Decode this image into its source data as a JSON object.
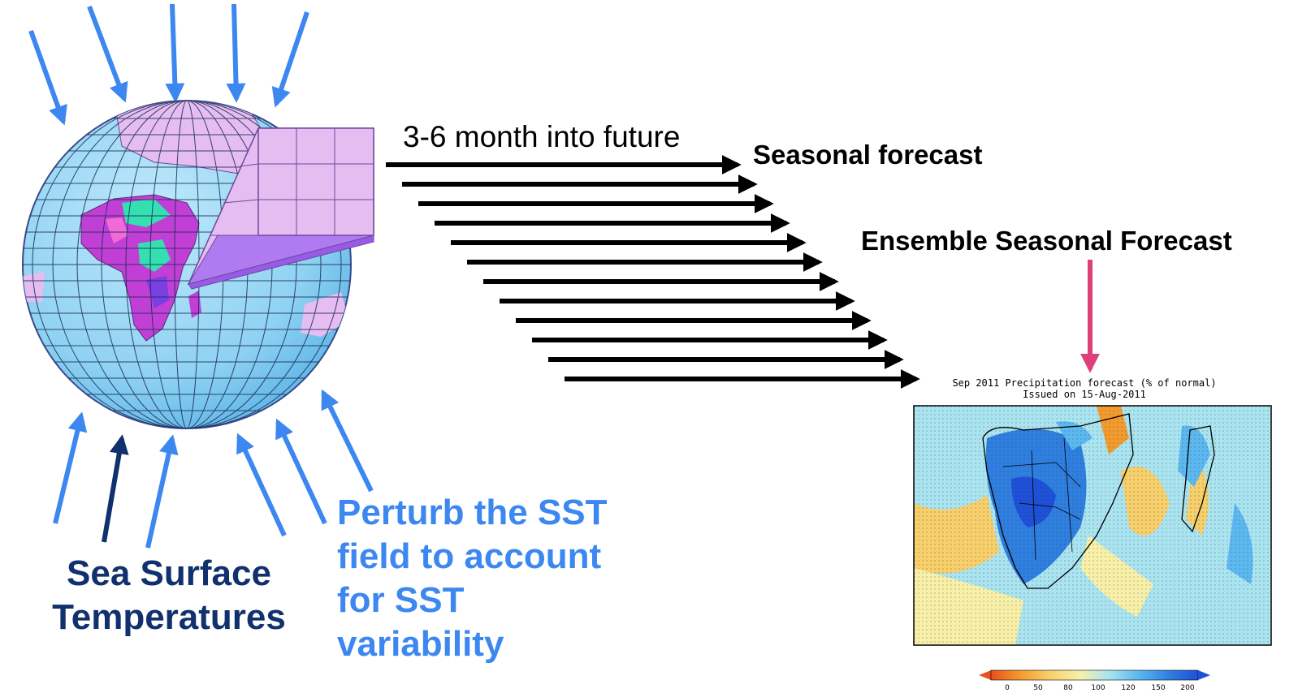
{
  "labels": {
    "future": "3-6 month into future",
    "seasonal_forecast": "Seasonal forecast",
    "ensemble_forecast": "Ensemble Seasonal Forecast",
    "sst_line1": "Sea Surface",
    "sst_line2": "Temperatures",
    "perturb_line1": "Perturb the SST",
    "perturb_line2": "field to account",
    "perturb_line3": "for SST",
    "perturb_line4": "variability"
  },
  "map": {
    "title_line1": "Sep 2011 Precipitation forecast (% of normal)",
    "title_line2": "Issued on 15-Aug-2011",
    "colorbar_ticks": [
      "0",
      "50",
      "80",
      "100",
      "120",
      "150",
      "200"
    ],
    "colorbar_colors": [
      "#e8501e",
      "#f39a2e",
      "#f7cf6b",
      "#f8f0a8",
      "#a9e4f0",
      "#5cb8f0",
      "#2f7fe0",
      "#1e50d8"
    ]
  },
  "colors": {
    "sun_arrows": "#3d87f0",
    "sst_arrow_dark": "#10306e",
    "forecast_arrows": "#000000",
    "ensemble_arrow": "#e0407a",
    "ocean": "#8fd2f2",
    "grid_box": "#e6bdf0"
  },
  "icons": {
    "globe": "globe-icon",
    "grid_box": "grid-box-icon"
  }
}
